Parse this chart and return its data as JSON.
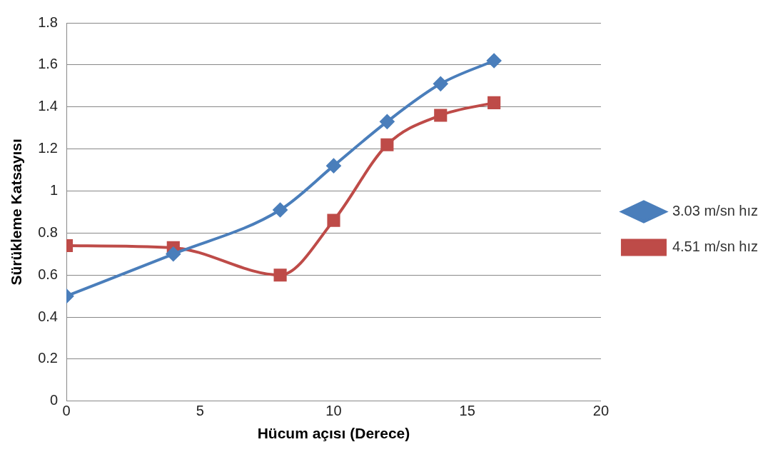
{
  "chart_data": {
    "type": "line",
    "xlabel": "Hücum açısı (Derece)",
    "ylabel": "Sürükleme Katsayısı",
    "xlim": [
      0,
      20
    ],
    "xticks": [
      0,
      5,
      10,
      15,
      20
    ],
    "ylim": [
      0,
      1.8
    ],
    "yticks": [
      0,
      0.2,
      0.4,
      0.6,
      0.8,
      1,
      1.2,
      1.4,
      1.6,
      1.8
    ],
    "grid": "y",
    "legend": "right",
    "series": [
      {
        "name": "3.03 m/sn hız",
        "color": "#4a7ebb",
        "marker": "diamond",
        "x": [
          0,
          4,
          8,
          10,
          12,
          14,
          16
        ],
        "values": [
          0.5,
          0.7,
          0.91,
          1.12,
          1.33,
          1.51,
          1.62
        ]
      },
      {
        "name": "4.51 m/sn hız",
        "color": "#be4b48",
        "marker": "square",
        "x": [
          0,
          4,
          8,
          10,
          12,
          14,
          16
        ],
        "values": [
          0.74,
          0.73,
          0.6,
          0.86,
          1.22,
          1.36,
          1.42
        ]
      }
    ]
  }
}
